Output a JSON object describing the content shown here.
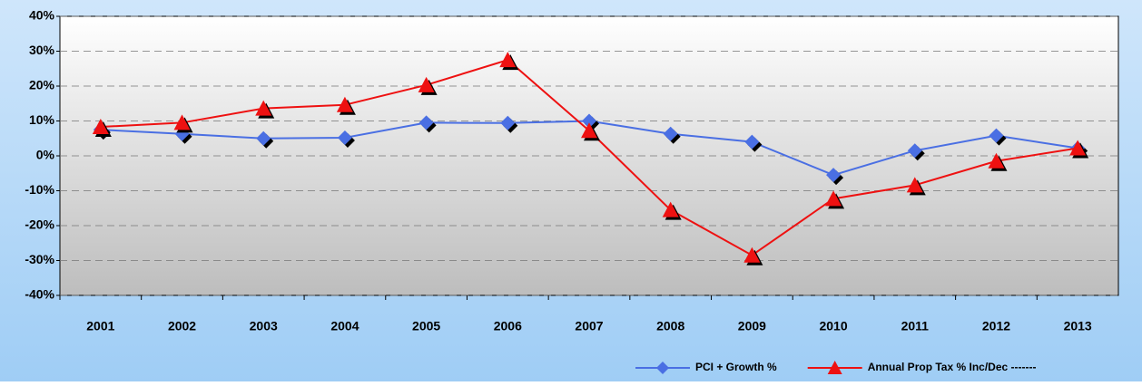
{
  "chart_data": {
    "type": "line",
    "categories": [
      "2001",
      "2002",
      "2003",
      "2004",
      "2005",
      "2006",
      "2007",
      "2008",
      "2009",
      "2010",
      "2011",
      "2012",
      "2013"
    ],
    "series": [
      {
        "name": "PCI + Growth %",
        "color": "#4a6fe3",
        "marker": "diamond",
        "values": [
          7.5,
          6.3,
          5.0,
          5.2,
          9.5,
          9.4,
          10.0,
          6.3,
          4.0,
          -5.5,
          1.5,
          5.8,
          2.2
        ]
      },
      {
        "name": "Annual Prop Tax % Inc/Dec -------",
        "color": "#ee1111",
        "marker": "triangle",
        "values": [
          8.3,
          9.5,
          13.6,
          14.6,
          20.3,
          27.5,
          7.2,
          -15.5,
          -28.5,
          -12.3,
          -8.4,
          -1.5,
          2.2
        ]
      }
    ],
    "ylim": [
      -40,
      40
    ],
    "yticks": [
      {
        "value": -40,
        "label": "-40%"
      },
      {
        "value": -30,
        "label": "-30%"
      },
      {
        "value": -20,
        "label": "-20%"
      },
      {
        "value": -10,
        "label": "-10%"
      },
      {
        "value": 0,
        "label": "0%"
      },
      {
        "value": 10,
        "label": "10%"
      },
      {
        "value": 20,
        "label": "20%"
      },
      {
        "value": 30,
        "label": "30%"
      },
      {
        "value": 40,
        "label": "40%"
      }
    ],
    "grid": true,
    "legend": "bottom-right"
  }
}
